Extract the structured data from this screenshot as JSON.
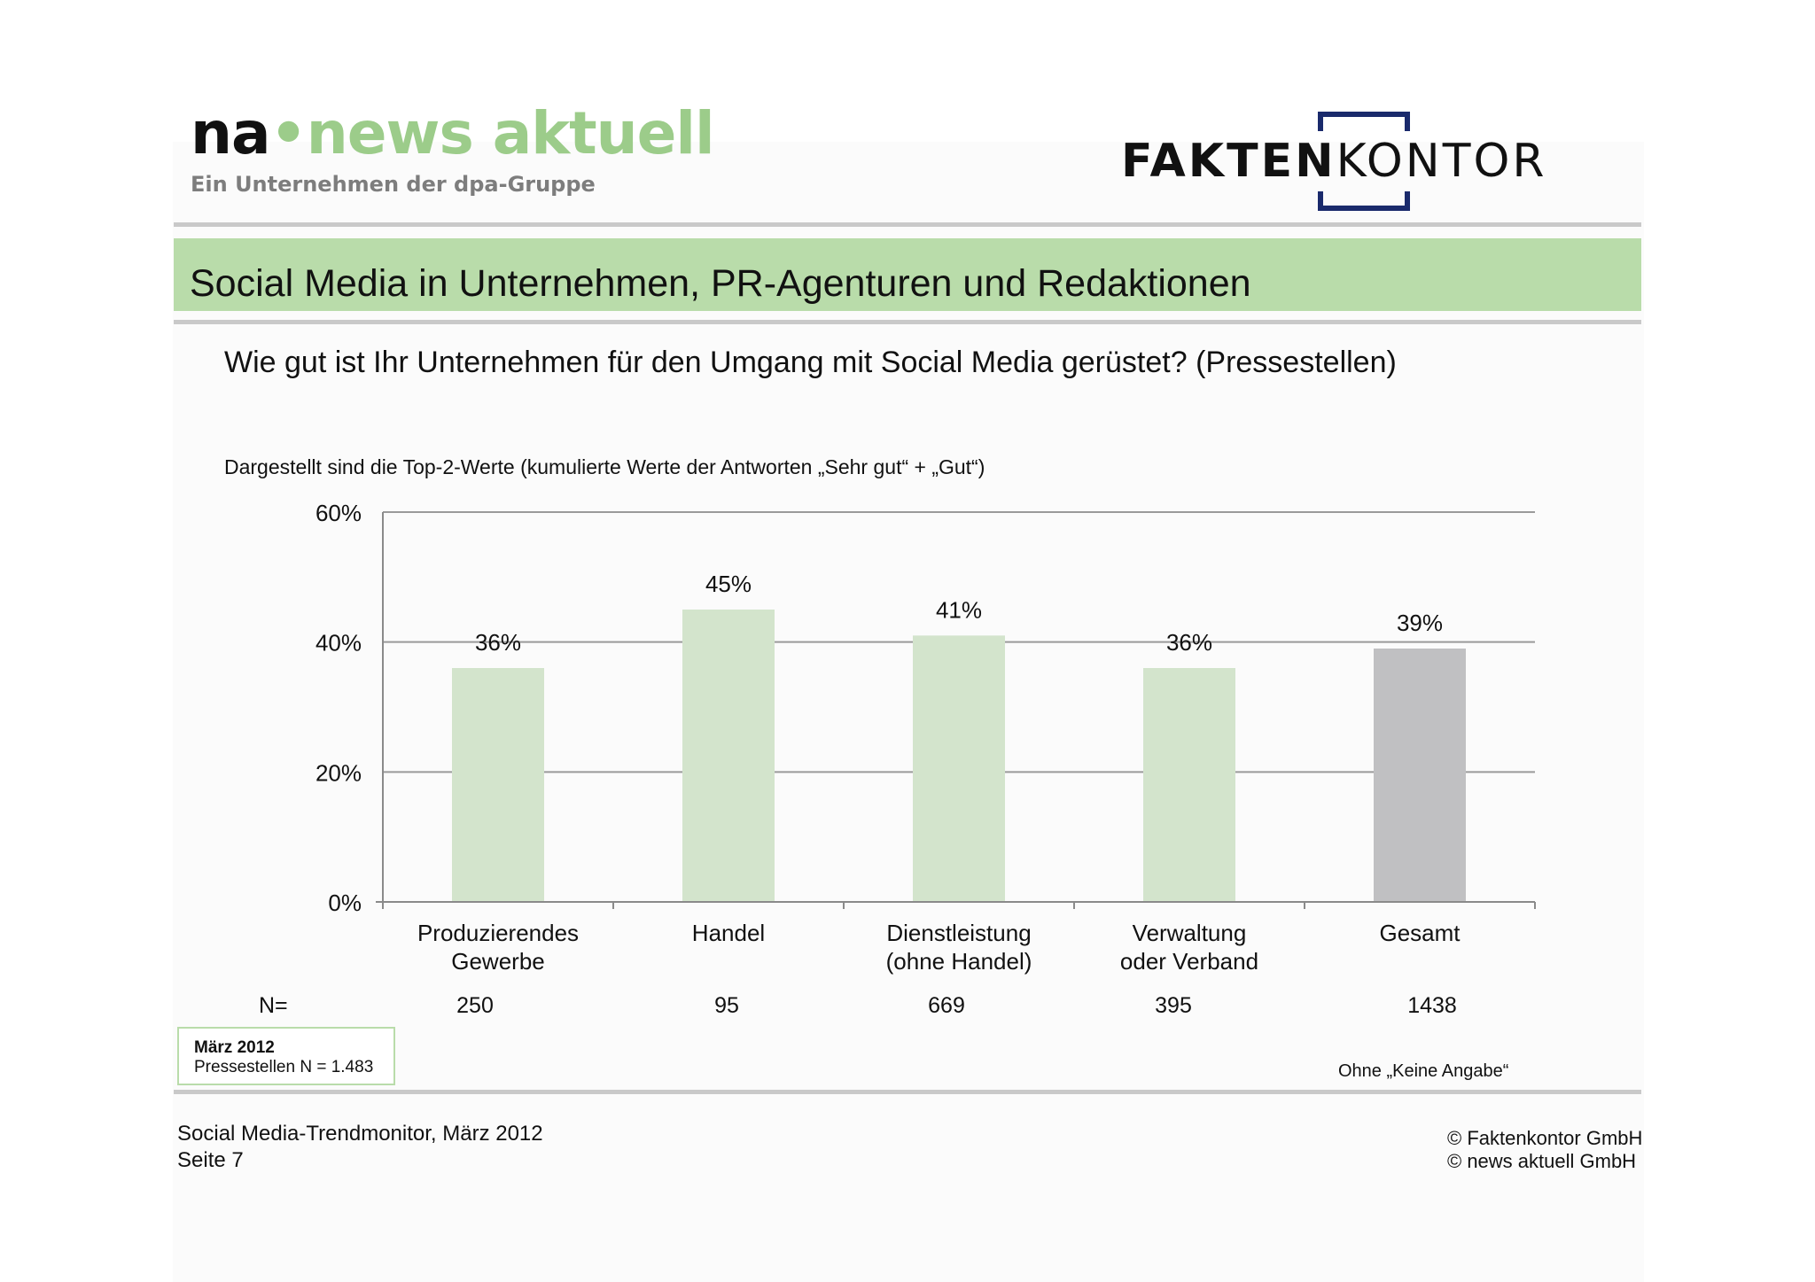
{
  "logos": {
    "na": {
      "prefix": "na",
      "brand": "news aktuell",
      "tagline": "Ein Unternehmen der dpa-Gruppe"
    },
    "fk": {
      "bold": "FAKTEN",
      "light": "KONTOR"
    }
  },
  "colors": {
    "title_band": "#b9dcaa",
    "bar_segment": "#d3e4cc",
    "bar_total": "#c0c0c2",
    "na_green": "#9ccc8a",
    "fk_navy": "#1a2a6c"
  },
  "title": "Social Media in Unternehmen, PR-Agenturen und Redaktionen",
  "question": "Wie gut ist Ihr Unternehmen für den Umgang mit Social Media gerüstet? (Pressestellen)",
  "note": "Dargestellt sind die Top-2-Werte (kumulierte Werte der Antworten „Sehr gut“ + „Gut“)",
  "chart_data": {
    "type": "bar",
    "categories": [
      [
        "Produzierendes",
        "Gewerbe"
      ],
      [
        "Handel"
      ],
      [
        "Dienstleistung",
        "(ohne Handel)"
      ],
      [
        "Verwaltung",
        "oder Verband"
      ],
      [
        "Gesamt"
      ]
    ],
    "values": [
      36,
      45,
      41,
      36,
      39
    ],
    "data_labels": [
      "36%",
      "45%",
      "41%",
      "36%",
      "39%"
    ],
    "ylim": [
      0,
      60
    ],
    "yticks": [
      "0%",
      "20%",
      "40%",
      "60%"
    ],
    "ytick_values": [
      0,
      20,
      40,
      60
    ],
    "grid": true,
    "highlight_last": true
  },
  "n_row": {
    "label": "N=",
    "values": [
      "250",
      "95",
      "669",
      "395",
      "1438"
    ]
  },
  "info_box": {
    "date": "März 2012",
    "sample": "Pressestellen N = 1.483"
  },
  "footnote": "Ohne „Keine Angabe“",
  "footer": {
    "left_line1": "Social Media-Trendmonitor, März 2012",
    "left_line2": "Seite 7",
    "right_line1": "© Faktenkontor GmbH",
    "right_line2": "© news aktuell GmbH"
  }
}
